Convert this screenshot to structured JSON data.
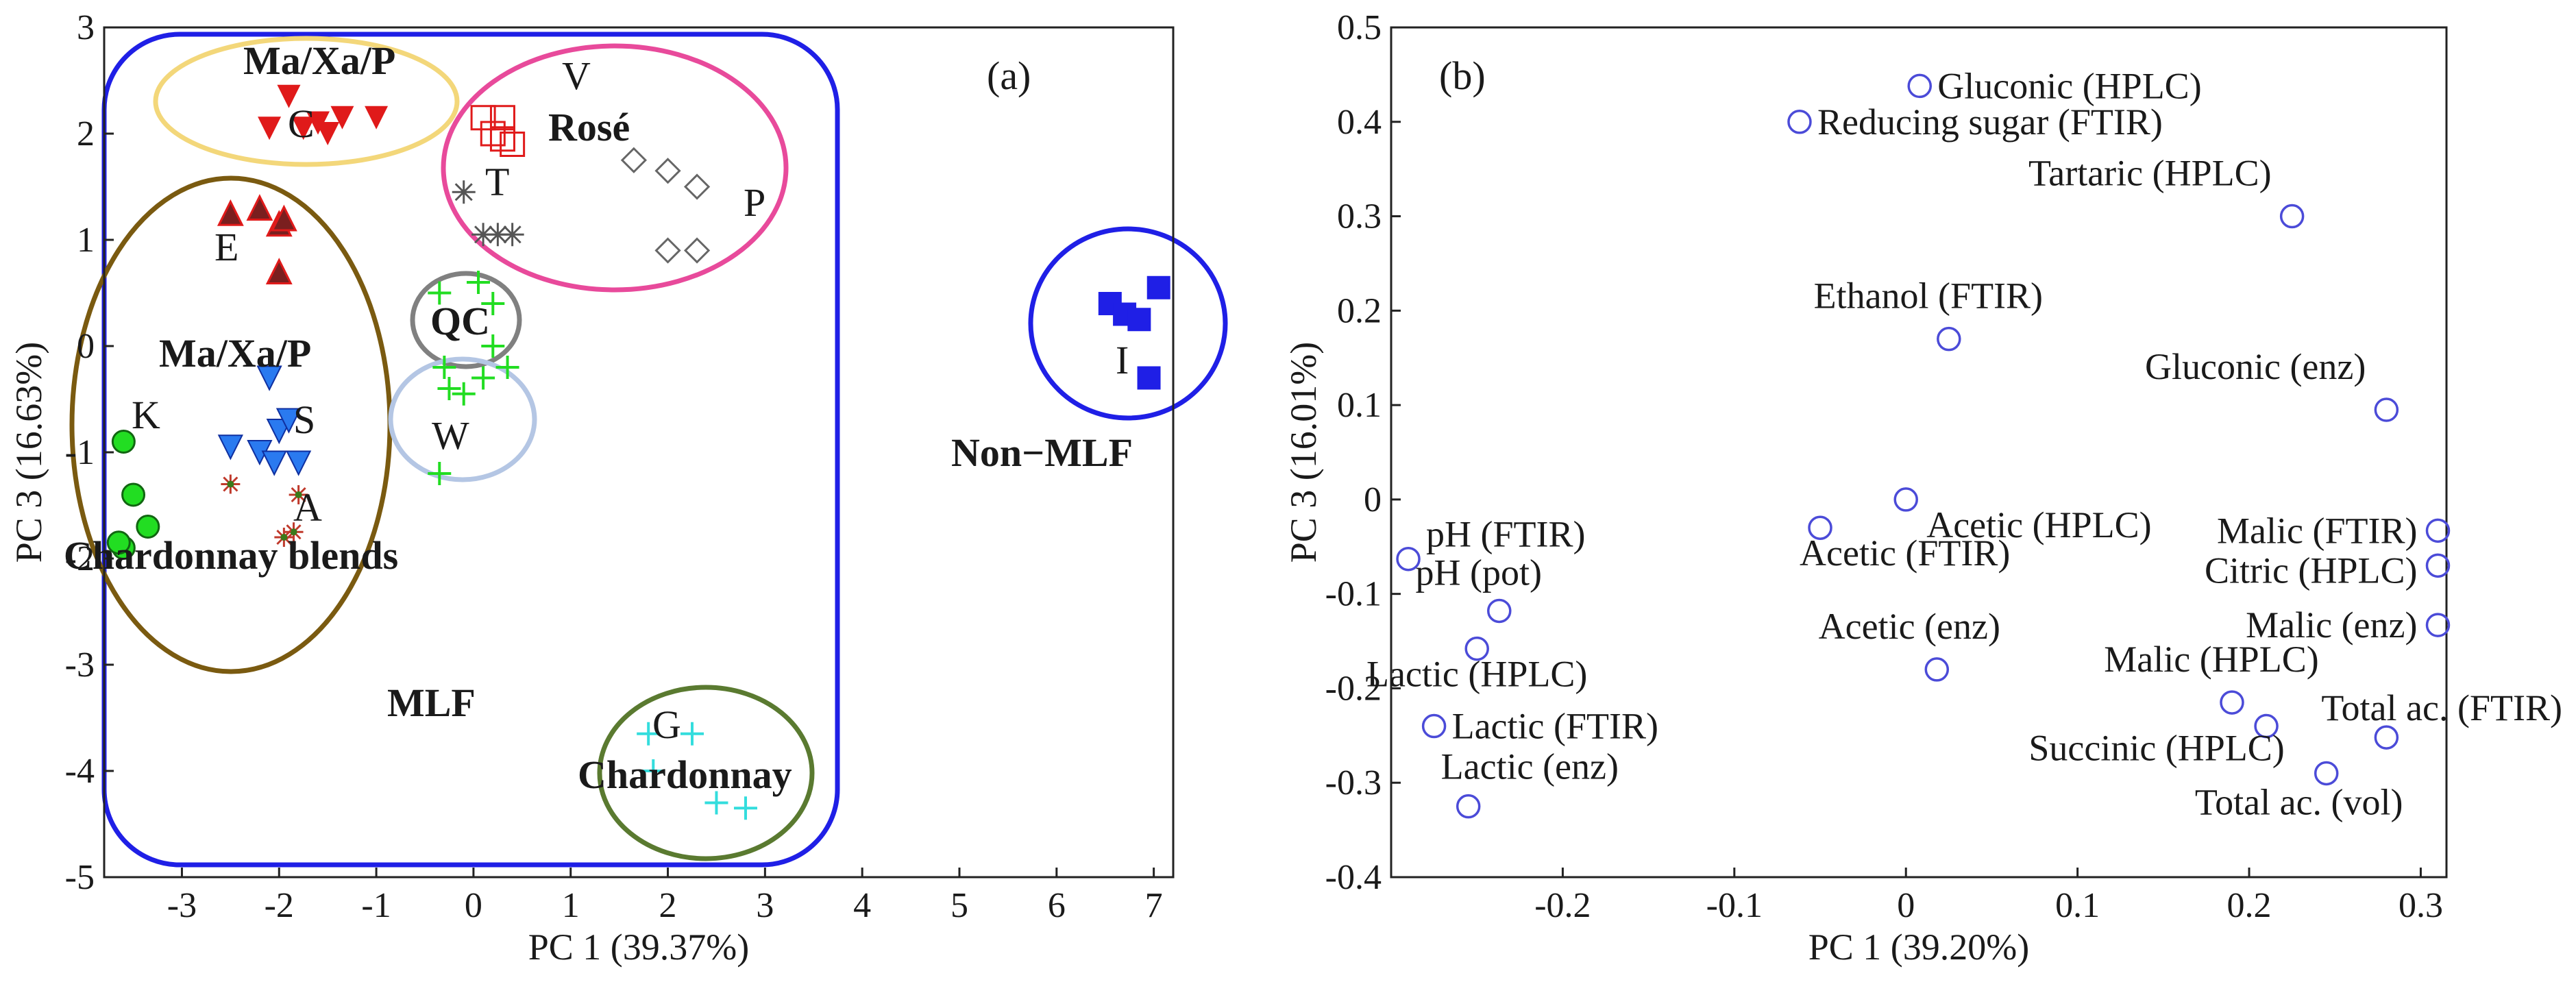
{
  "colors": {
    "mlf_box": "#1f1fe6",
    "nonmlf": "#1f1fe6",
    "maxap_c": "#f3d77a",
    "red_tri": "#e01a1a",
    "rose": "#e84a9b",
    "brown": "#7a5a10",
    "qc": "#808080",
    "w": "#b4c6e4",
    "chardonnay": "#5a7a30",
    "green_cross": "#22dd22",
    "cyan_cross": "#33dddd",
    "blue_tri": "#2a7af0",
    "circle": "#4b4bd8",
    "dark_tri": "#7a1f1f",
    "gray": "#666666"
  },
  "chart_data": [
    {
      "type": "scatter",
      "panel_label": "(a)",
      "xlabel": "PC 1 (39.37%)",
      "ylabel": "PC 3 (16.63%)",
      "xlim": [
        -3.8,
        7.2
      ],
      "ylim": [
        -5,
        3
      ],
      "xticks": [
        "-3",
        "-2",
        "-1",
        "0",
        "1",
        "2",
        "3",
        "4",
        "5",
        "6",
        "7"
      ],
      "yticks": [
        "3",
        "2",
        "1",
        "0",
        "-1",
        "-2",
        "-3",
        "-4",
        "-5"
      ],
      "region_labels": {
        "mlf": "MLF",
        "nonmlf": "Non−MLF"
      },
      "group_labels": {
        "maxap_top": "Ma/Xa/P",
        "c": "C",
        "v": "V",
        "rose": "Rosé",
        "t": "T",
        "p": "P",
        "e": "E",
        "qc": "QC",
        "maxap_mid": "Ma/Xa/P",
        "k": "K",
        "s": "S",
        "w": "W",
        "a": "A",
        "chardonnay_blends": "Chardonnay blends",
        "g": "G",
        "chardonnay": "Chardonnay",
        "i": "I"
      },
      "series": [
        {
          "name": "C",
          "marker": "triangle-down-red",
          "points": [
            [
              -2.1,
              2.05
            ],
            [
              -1.75,
              2.05
            ],
            [
              -1.5,
              2.0
            ],
            [
              -1.35,
              2.15
            ],
            [
              -1.0,
              2.15
            ],
            [
              -1.9,
              2.35
            ],
            [
              -1.6,
              2.1
            ]
          ]
        },
        {
          "name": "V",
          "marker": "square-red-open",
          "points": [
            [
              0.1,
              2.15
            ],
            [
              0.3,
              2.15
            ],
            [
              0.4,
              1.9
            ],
            [
              0.2,
              2.0
            ],
            [
              0.3,
              1.95
            ]
          ]
        },
        {
          "name": "T",
          "marker": "asterisk",
          "points": [
            [
              -0.1,
              1.45
            ],
            [
              0.1,
              1.05
            ],
            [
              0.25,
              1.05
            ],
            [
              0.4,
              1.05
            ]
          ]
        },
        {
          "name": "P",
          "marker": "diamond-open",
          "points": [
            [
              1.65,
              1.75
            ],
            [
              2.0,
              1.65
            ],
            [
              2.3,
              1.5
            ],
            [
              2.0,
              0.9
            ],
            [
              2.3,
              0.9
            ]
          ]
        },
        {
          "name": "E",
          "marker": "triangle-up-dark",
          "points": [
            [
              -2.5,
              1.25
            ],
            [
              -2.2,
              1.3
            ],
            [
              -2.0,
              1.15
            ],
            [
              -1.95,
              1.2
            ],
            [
              -2.0,
              0.7
            ]
          ]
        },
        {
          "name": "QC",
          "marker": "plus-green",
          "points": [
            [
              -0.35,
              0.5
            ],
            [
              0.05,
              0.6
            ],
            [
              0.2,
              0.4
            ],
            [
              0.2,
              0.0
            ],
            [
              0.35,
              -0.2
            ],
            [
              -0.3,
              -0.2
            ],
            [
              -0.25,
              -0.4
            ],
            [
              -0.1,
              -0.45
            ],
            [
              0.1,
              -0.3
            ],
            [
              -0.35,
              -1.2
            ]
          ]
        },
        {
          "name": "S",
          "marker": "triangle-down-blue",
          "points": [
            [
              -2.1,
              -0.3
            ],
            [
              -2.0,
              -0.8
            ],
            [
              -2.2,
              -1.0
            ],
            [
              -1.8,
              -1.1
            ],
            [
              -2.05,
              -1.1
            ],
            [
              -1.9,
              -0.7
            ],
            [
              -2.5,
              -0.95
            ]
          ]
        },
        {
          "name": "K",
          "marker": "circle-green",
          "points": [
            [
              -3.6,
              -0.9
            ],
            [
              -3.5,
              -1.4
            ],
            [
              -3.35,
              -1.7
            ],
            [
              -3.6,
              -1.9
            ],
            [
              -3.65,
              -1.85
            ]
          ]
        },
        {
          "name": "A",
          "marker": "star-dark",
          "points": [
            [
              -2.5,
              -1.3
            ],
            [
              -1.8,
              -1.4
            ],
            [
              -1.85,
              -1.75
            ],
            [
              -1.95,
              -1.8
            ]
          ]
        },
        {
          "name": "G",
          "marker": "plus-cyan",
          "points": [
            [
              1.8,
              -3.65
            ],
            [
              2.25,
              -3.65
            ],
            [
              1.85,
              -4.0
            ],
            [
              2.5,
              -4.3
            ],
            [
              2.8,
              -4.35
            ]
          ]
        },
        {
          "name": "I",
          "marker": "square-blue",
          "points": [
            [
              6.55,
              0.4
            ],
            [
              6.7,
              0.3
            ],
            [
              6.85,
              0.25
            ],
            [
              7.05,
              0.55
            ],
            [
              6.95,
              -0.3
            ]
          ]
        }
      ]
    },
    {
      "type": "scatter",
      "panel_label": "(b)",
      "xlabel": "PC 1 (39.20%)",
      "ylabel": "PC 3 (16.01%)",
      "xlim": [
        -0.3,
        0.315
      ],
      "ylim": [
        -0.4,
        0.5
      ],
      "xticks": [
        "-0.2",
        "-0.1",
        "0",
        "0.1",
        "0.2",
        "0.3"
      ],
      "yticks": [
        "0.5",
        "0.4",
        "0.3",
        "0.2",
        "0.1",
        "0",
        "-0.1",
        "-0.2",
        "-0.3",
        "-0.4"
      ],
      "points": [
        {
          "label": "Gluconic (HPLC)",
          "x": 0.008,
          "y": 0.438
        },
        {
          "label": "Reducing sugar  (FTIR)",
          "x": -0.062,
          "y": 0.4
        },
        {
          "label": "Tartaric (HPLC)",
          "x": 0.225,
          "y": 0.3
        },
        {
          "label": "Ethanol (FTIR)",
          "x": 0.025,
          "y": 0.17
        },
        {
          "label": "Gluconic (enz)",
          "x": 0.28,
          "y": 0.095
        },
        {
          "label": "pH (FTIR)",
          "x": -0.29,
          "y": -0.063
        },
        {
          "label": "pH (pot)",
          "x": -0.237,
          "y": -0.118
        },
        {
          "label": "Acetic (HPLC)",
          "x": 0.0,
          "y": 0.0
        },
        {
          "label": "Acetic (FTIR)",
          "x": -0.05,
          "y": -0.03
        },
        {
          "label": "Acetic (enz)",
          "x": 0.018,
          "y": -0.18
        },
        {
          "label": "Malic (FTIR)",
          "x": 0.31,
          "y": -0.033
        },
        {
          "label": "Citric (HPLC)",
          "x": 0.31,
          "y": -0.07
        },
        {
          "label": "Malic (enz)",
          "x": 0.31,
          "y": -0.133
        },
        {
          "label": "Lactic (HPLC)",
          "x": -0.25,
          "y": -0.158
        },
        {
          "label": "Lactic (FTIR)",
          "x": -0.275,
          "y": -0.24
        },
        {
          "label": "Lactic (enz)",
          "x": -0.255,
          "y": -0.325
        },
        {
          "label": "Malic (HPLC)",
          "x": 0.19,
          "y": -0.215
        },
        {
          "label": "Total ac. (FTIR)",
          "x": 0.28,
          "y": -0.252
        },
        {
          "label": "Succinic (HPLC)",
          "x": 0.21,
          "y": -0.24
        },
        {
          "label": "Total ac. (vol)",
          "x": 0.245,
          "y": -0.29
        }
      ]
    }
  ]
}
